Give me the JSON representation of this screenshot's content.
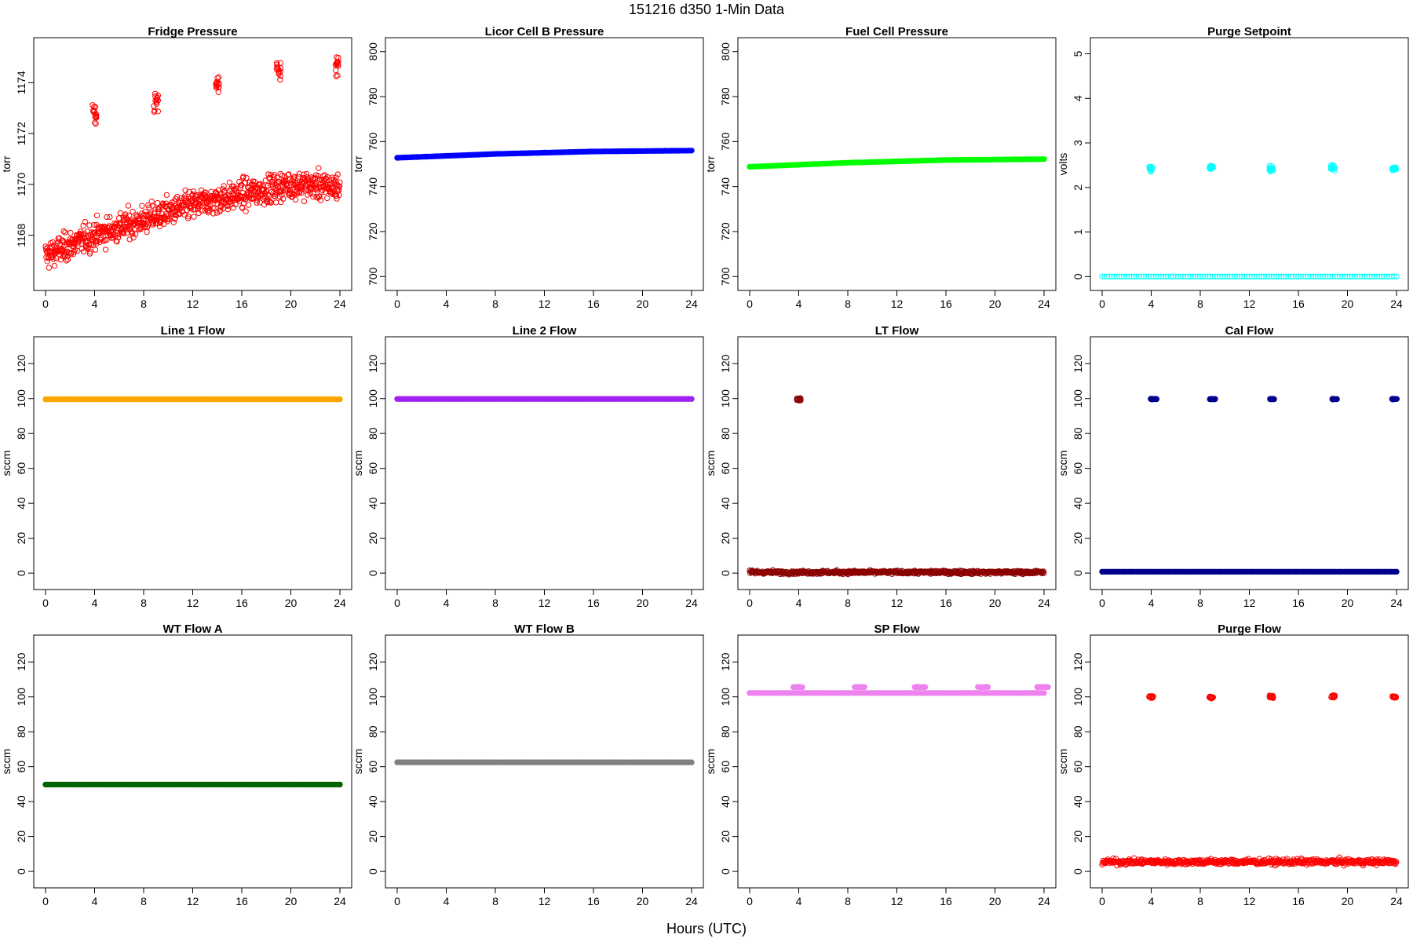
{
  "figure": {
    "title": "151216   d350   1-Min Data",
    "xlabel": "Hours (UTC)"
  },
  "chart_data": [
    {
      "type": "scatter",
      "title": "Fridge Pressure",
      "ylabel": "torr",
      "xlim": [
        0,
        24
      ],
      "ylim": [
        1166.2,
        1175.4
      ],
      "xticks": [
        0,
        4,
        8,
        12,
        16,
        20,
        24
      ],
      "yticks": [
        1168,
        1170,
        1172,
        1174
      ],
      "color": "#ff0000",
      "marker": "open-circle",
      "series": [
        {
          "kind": "noisy_trend",
          "x": [
            0,
            4,
            8,
            12,
            16,
            20,
            24
          ],
          "y": [
            1167.2,
            1168.0,
            1168.6,
            1169.2,
            1169.6,
            1170.0,
            1169.9
          ],
          "spread": 0.7
        },
        {
          "kind": "spikes",
          "centers": [
            4.0,
            9.0,
            14.0,
            19.0,
            23.8
          ],
          "means": [
            1172.8,
            1173.3,
            1173.9,
            1174.6,
            1174.7
          ],
          "spread": 0.6
        }
      ]
    },
    {
      "type": "scatter",
      "title": "Licor Cell B Pressure",
      "ylabel": "torr",
      "xlim": [
        0,
        24
      ],
      "ylim": [
        698,
        802
      ],
      "xticks": [
        0,
        4,
        8,
        12,
        16,
        20,
        24
      ],
      "yticks": [
        700,
        720,
        740,
        760,
        780,
        800
      ],
      "color": "#0000ff",
      "marker": "filled-circle",
      "series": [
        {
          "kind": "flat_line",
          "x": [
            0,
            8,
            16,
            24
          ],
          "y": [
            752.8,
            754.5,
            755.6,
            756.0
          ]
        }
      ]
    },
    {
      "type": "scatter",
      "title": "Fuel Cell Pressure",
      "ylabel": "torr",
      "xlim": [
        0,
        24
      ],
      "ylim": [
        698,
        802
      ],
      "xticks": [
        0,
        4,
        8,
        12,
        16,
        20,
        24
      ],
      "yticks": [
        700,
        720,
        740,
        760,
        780,
        800
      ],
      "color": "#00ff00",
      "marker": "filled-circle",
      "series": [
        {
          "kind": "flat_line",
          "x": [
            0,
            8,
            16,
            24
          ],
          "y": [
            748.8,
            750.6,
            751.8,
            752.2
          ]
        }
      ]
    },
    {
      "type": "scatter",
      "title": "Purge Setpoint",
      "ylabel": "volts",
      "xlim": [
        0,
        24
      ],
      "ylim": [
        -0.1,
        5.15
      ],
      "xticks": [
        0,
        4,
        8,
        12,
        16,
        20,
        24
      ],
      "yticks": [
        0,
        1,
        2,
        3,
        4,
        5
      ],
      "color": "#00ffff",
      "marker": "open-circle",
      "series": [
        {
          "kind": "flat_line",
          "x": [
            0,
            24
          ],
          "y": [
            0,
            0
          ]
        },
        {
          "kind": "spikes",
          "centers": [
            4.0,
            8.9,
            13.8,
            18.8,
            23.8
          ],
          "means": [
            2.42,
            2.44,
            2.41,
            2.45,
            2.43
          ],
          "spread": 0.08
        }
      ]
    },
    {
      "type": "scatter",
      "title": "Line 1 Flow",
      "ylabel": "sccm",
      "xlim": [
        0,
        24
      ],
      "ylim": [
        -4,
        130
      ],
      "xticks": [
        0,
        4,
        8,
        12,
        16,
        20,
        24
      ],
      "yticks": [
        0,
        20,
        40,
        60,
        80,
        100,
        120
      ],
      "color": "#ffa500",
      "marker": "filled-circle",
      "series": [
        {
          "kind": "flat_line",
          "x": [
            0,
            24
          ],
          "y": [
            99.6,
            99.6
          ]
        }
      ]
    },
    {
      "type": "scatter",
      "title": "Line 2 Flow",
      "ylabel": "sccm",
      "xlim": [
        0,
        24
      ],
      "ylim": [
        -4,
        130
      ],
      "xticks": [
        0,
        4,
        8,
        12,
        16,
        20,
        24
      ],
      "yticks": [
        0,
        20,
        40,
        60,
        80,
        100,
        120
      ],
      "color": "#a020f0",
      "marker": "filled-circle",
      "series": [
        {
          "kind": "flat_line",
          "x": [
            0,
            24
          ],
          "y": [
            99.8,
            99.8
          ]
        }
      ]
    },
    {
      "type": "scatter",
      "title": "LT Flow",
      "ylabel": "sccm",
      "xlim": [
        0,
        24
      ],
      "ylim": [
        -4,
        130
      ],
      "xticks": [
        0,
        4,
        8,
        12,
        16,
        20,
        24
      ],
      "yticks": [
        0,
        20,
        40,
        60,
        80,
        100,
        120
      ],
      "color": "#8b0000",
      "marker": "open-circle",
      "series": [
        {
          "kind": "band",
          "x": [
            0,
            24
          ],
          "y": [
            0.5,
            0.5
          ],
          "spread": 1.5
        },
        {
          "kind": "spikes",
          "centers": [
            4.0
          ],
          "means": [
            99.5
          ],
          "spread": 1.2
        }
      ]
    },
    {
      "type": "scatter",
      "title": "Cal Flow",
      "ylabel": "sccm",
      "xlim": [
        0,
        24
      ],
      "ylim": [
        -4,
        130
      ],
      "xticks": [
        0,
        4,
        8,
        12,
        16,
        20,
        24
      ],
      "yticks": [
        0,
        20,
        40,
        60,
        80,
        100,
        120
      ],
      "color": "#00008b",
      "marker": "filled-circle",
      "series": [
        {
          "kind": "flat_line",
          "x": [
            0,
            24
          ],
          "y": [
            0.8,
            0.8
          ]
        },
        {
          "kind": "spikes",
          "centers": [
            4.2,
            9.0,
            13.9,
            18.9,
            23.8
          ],
          "means": [
            99.7,
            99.7,
            99.7,
            99.7,
            99.7
          ],
          "spread": 0.2,
          "width": 0.5
        }
      ]
    },
    {
      "type": "scatter",
      "title": "WT Flow A",
      "ylabel": "sccm",
      "xlim": [
        0,
        24
      ],
      "ylim": [
        -4,
        130
      ],
      "xticks": [
        0,
        4,
        8,
        12,
        16,
        20,
        24
      ],
      "yticks": [
        0,
        20,
        40,
        60,
        80,
        100,
        120
      ],
      "color": "#006400",
      "marker": "filled-circle",
      "series": [
        {
          "kind": "flat_line",
          "x": [
            0,
            24
          ],
          "y": [
            49.8,
            49.8
          ]
        }
      ]
    },
    {
      "type": "scatter",
      "title": "WT Flow B",
      "ylabel": "sccm",
      "xlim": [
        0,
        24
      ],
      "ylim": [
        -4,
        130
      ],
      "xticks": [
        0,
        4,
        8,
        12,
        16,
        20,
        24
      ],
      "yticks": [
        0,
        20,
        40,
        60,
        80,
        100,
        120
      ],
      "color": "#808080",
      "marker": "filled-circle",
      "series": [
        {
          "kind": "flat_line",
          "x": [
            0,
            24
          ],
          "y": [
            62.5,
            62.5
          ]
        }
      ]
    },
    {
      "type": "scatter",
      "title": "SP Flow",
      "ylabel": "sccm",
      "xlim": [
        0,
        24
      ],
      "ylim": [
        -4,
        130
      ],
      "xticks": [
        0,
        4,
        8,
        12,
        16,
        20,
        24
      ],
      "yticks": [
        0,
        20,
        40,
        60,
        80,
        100,
        120
      ],
      "color": "#ee82ee",
      "marker": "filled-circle",
      "series": [
        {
          "kind": "flat_line",
          "x": [
            0,
            24
          ],
          "y": [
            102.2,
            102.2
          ]
        },
        {
          "kind": "spikes",
          "centers": [
            4.0,
            9.0,
            13.9,
            19.0,
            23.9
          ],
          "means": [
            105.6,
            105.6,
            105.6,
            105.6,
            105.6
          ],
          "spread": 0.2,
          "width": 0.9
        }
      ]
    },
    {
      "type": "scatter",
      "title": "Purge Flow",
      "ylabel": "sccm",
      "xlim": [
        0,
        24
      ],
      "ylim": [
        -4,
        130
      ],
      "xticks": [
        0,
        4,
        8,
        12,
        16,
        20,
        24
      ],
      "yticks": [
        0,
        20,
        40,
        60,
        80,
        100,
        120
      ],
      "color": "#ff0000",
      "marker": "open-circle",
      "series": [
        {
          "kind": "band",
          "x": [
            0,
            24
          ],
          "y": [
            5.5,
            5.5
          ],
          "spread": 2.5
        },
        {
          "kind": "spikes",
          "centers": [
            4.0,
            8.9,
            13.8,
            18.8,
            23.8
          ],
          "means": [
            100.0,
            99.8,
            100.0,
            100.2,
            100.0
          ],
          "spread": 0.8
        }
      ]
    }
  ]
}
